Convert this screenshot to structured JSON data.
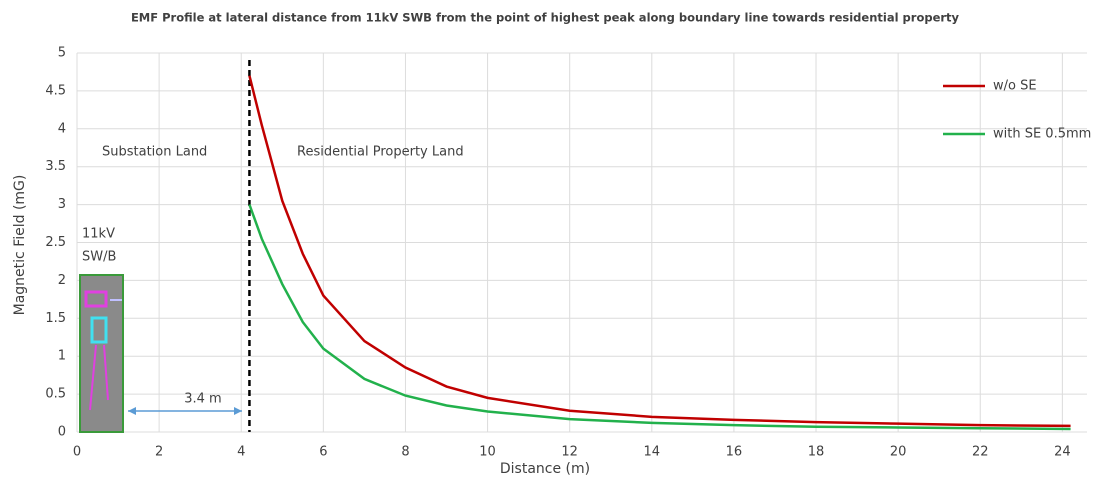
{
  "chart_data": {
    "type": "line",
    "title": "EMF Profile at lateral distance from 11kV SWB from the point of highest peak along boundary line towards residential property",
    "x_label": "Distance (m)",
    "y_label": "Magnetic Field (mG)",
    "x": [
      4.2,
      4.5,
      5,
      5.5,
      6,
      7,
      8,
      9,
      10,
      12,
      14,
      16,
      18,
      20,
      22,
      24.2
    ],
    "series": [
      {
        "name": "w/o SE",
        "color": "#c00000",
        "values": [
          4.7,
          4.05,
          3.05,
          2.35,
          1.8,
          1.2,
          0.85,
          0.6,
          0.45,
          0.28,
          0.2,
          0.16,
          0.13,
          0.11,
          0.09,
          0.08
        ]
      },
      {
        "name": "with SE 0.5mm",
        "color": "#22b14c",
        "values": [
          3.0,
          2.55,
          1.95,
          1.45,
          1.1,
          0.7,
          0.48,
          0.35,
          0.27,
          0.17,
          0.12,
          0.09,
          0.07,
          0.06,
          0.05,
          0.04
        ]
      }
    ],
    "xlim": [
      0,
      24.6
    ],
    "xticks": [
      0,
      2,
      4,
      6,
      8,
      10,
      12,
      14,
      16,
      18,
      20,
      22,
      24
    ],
    "ylim": [
      0,
      5
    ],
    "yticks": [
      0,
      0.5,
      1,
      1.5,
      2,
      2.5,
      3,
      3.5,
      4,
      4.5,
      5
    ],
    "grid": true,
    "legend": "top-right",
    "annotations": [
      "Substation Land",
      "Residential Property Land",
      "11kV",
      "SW/B",
      "3.4 m"
    ]
  }
}
